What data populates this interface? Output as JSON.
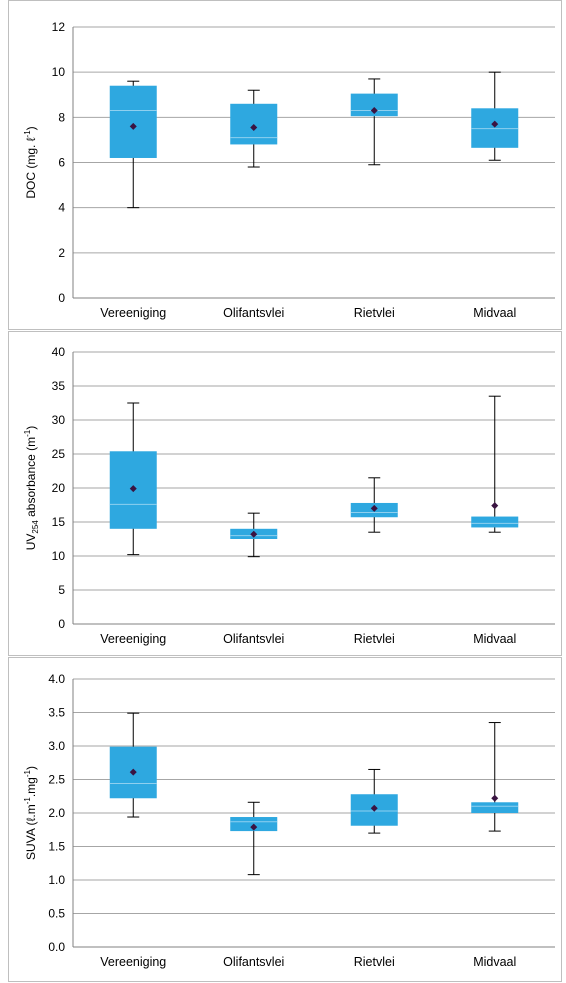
{
  "colors": {
    "box": "#2ea8e0",
    "median": "#8fd0ef",
    "mean_marker": "#3a1442",
    "grid": "#a6a6a6",
    "whisker": "#000000"
  },
  "chart_data": [
    {
      "type": "box",
      "ylabel": {
        "main": "DOC (mg. ℓ",
        "sup": "-1",
        "tail": ")"
      },
      "ylim": [
        0,
        12
      ],
      "yticks": [
        "0",
        "2",
        "4",
        "6",
        "8",
        "10",
        "12"
      ],
      "grid": true,
      "categories": [
        "Vereeniging",
        "Olifantsvlei",
        "Rietvlei",
        "Midvaal"
      ],
      "boxes": [
        {
          "min": 4.0,
          "q1": 6.2,
          "median": 8.3,
          "q3": 9.4,
          "max": 9.6,
          "mean": 7.6
        },
        {
          "min": 5.8,
          "q1": 6.8,
          "median": 7.1,
          "q3": 8.6,
          "max": 9.2,
          "mean": 7.55
        },
        {
          "min": 5.9,
          "q1": 8.05,
          "median": 8.3,
          "q3": 9.05,
          "max": 9.7,
          "mean": 8.3
        },
        {
          "min": 6.1,
          "q1": 6.65,
          "median": 7.5,
          "q3": 8.4,
          "max": 10.0,
          "mean": 7.7
        }
      ]
    },
    {
      "type": "box",
      "ylabel": {
        "main": "UV",
        "sub": "254",
        "mid": " absorbance (m",
        "sup": "-1",
        "tail": ")"
      },
      "ylim": [
        0,
        40
      ],
      "yticks": [
        "0",
        "5",
        "10",
        "15",
        "20",
        "25",
        "30",
        "35",
        "40"
      ],
      "grid": true,
      "categories": [
        "Vereeniging",
        "Olifantsvlei",
        "Rietvlei",
        "Midvaal"
      ],
      "boxes": [
        {
          "min": 10.2,
          "q1": 14.0,
          "median": 17.6,
          "q3": 25.4,
          "max": 32.5,
          "mean": 19.9
        },
        {
          "min": 9.9,
          "q1": 12.5,
          "median": 13.0,
          "q3": 14.0,
          "max": 16.3,
          "mean": 13.2
        },
        {
          "min": 13.5,
          "q1": 15.7,
          "median": 16.4,
          "q3": 17.8,
          "max": 21.5,
          "mean": 17.0
        },
        {
          "min": 13.5,
          "q1": 14.2,
          "median": 14.8,
          "q3": 15.8,
          "max": 33.5,
          "mean": 17.4
        }
      ]
    },
    {
      "type": "box",
      "ylabel": {
        "main": "SUVA (ℓ.m",
        "sup": "-1",
        "mid": ".mg",
        "sup2": "-1",
        "tail": ")"
      },
      "ylim": [
        0,
        4
      ],
      "yticks": [
        "0.0",
        "0.5",
        "1.0",
        "1.5",
        "2.0",
        "2.5",
        "3.0",
        "3.5",
        "4.0"
      ],
      "grid": true,
      "categories": [
        "Vereeniging",
        "Olifantsvlei",
        "Rietvlei",
        "Midvaal"
      ],
      "boxes": [
        {
          "min": 1.94,
          "q1": 2.22,
          "median": 2.44,
          "q3": 2.99,
          "max": 3.49,
          "mean": 2.61
        },
        {
          "min": 1.08,
          "q1": 1.73,
          "median": 1.87,
          "q3": 1.94,
          "max": 2.16,
          "mean": 1.79
        },
        {
          "min": 1.7,
          "q1": 1.81,
          "median": 2.03,
          "q3": 2.28,
          "max": 2.65,
          "mean": 2.07
        },
        {
          "min": 1.73,
          "q1": 2.0,
          "median": 2.1,
          "q3": 2.16,
          "max": 3.35,
          "mean": 2.22
        }
      ]
    }
  ]
}
